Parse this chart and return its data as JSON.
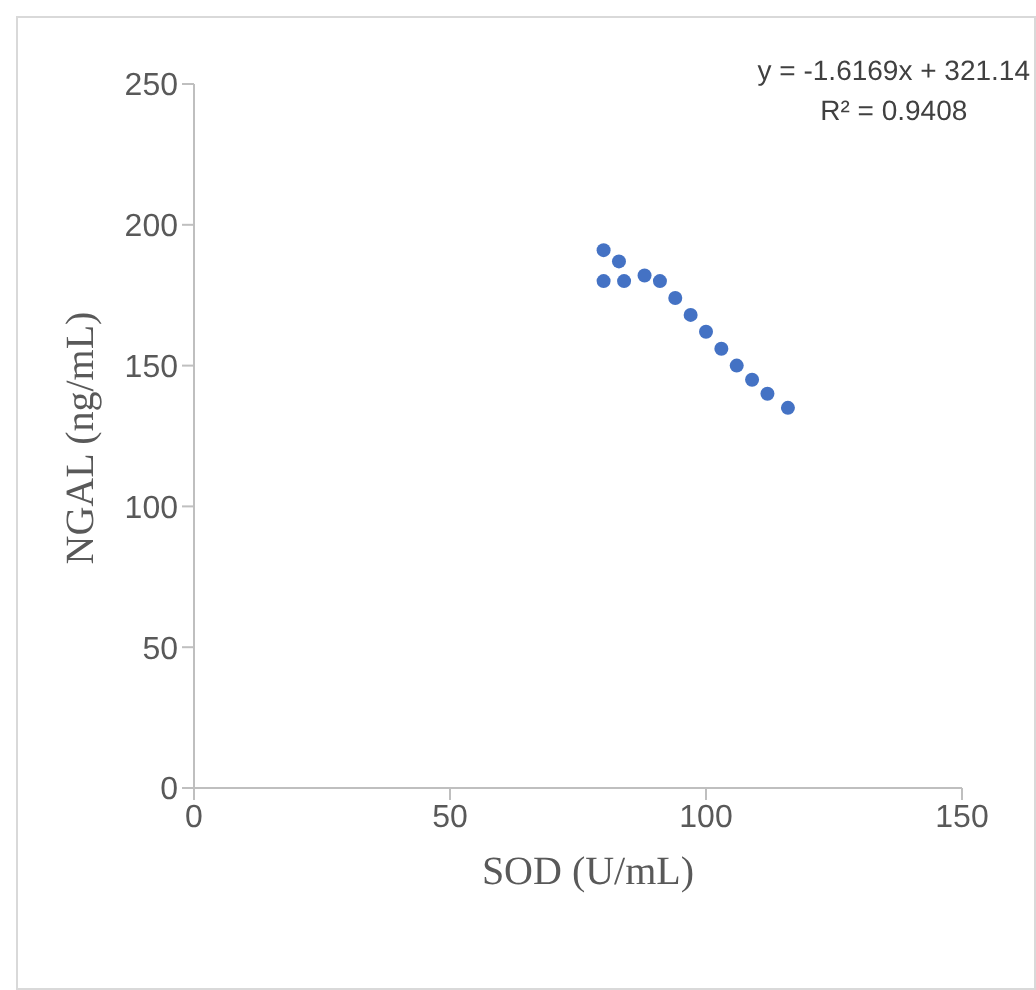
{
  "chart_data": {
    "type": "scatter",
    "xlabel": "SOD (U/mL)",
    "ylabel": "NGAL (ng/mL)",
    "x": [
      80,
      84,
      88,
      91,
      94,
      97,
      100,
      103,
      106,
      109,
      112,
      116,
      80,
      83
    ],
    "values": [
      180,
      180,
      182,
      180,
      174,
      168,
      162,
      156,
      150,
      145,
      140,
      135,
      191,
      187
    ],
    "color": "#4472c4",
    "marker": "circle",
    "xlim": [
      0,
      150
    ],
    "xticks": [
      0,
      50,
      100,
      150
    ],
    "ylim": [
      0,
      250
    ],
    "yticks": [
      0,
      50,
      100,
      150,
      200,
      250
    ],
    "grid": false,
    "annotations": [
      "y = -1.6169x + 321.14",
      "R² = 0.9408"
    ]
  }
}
